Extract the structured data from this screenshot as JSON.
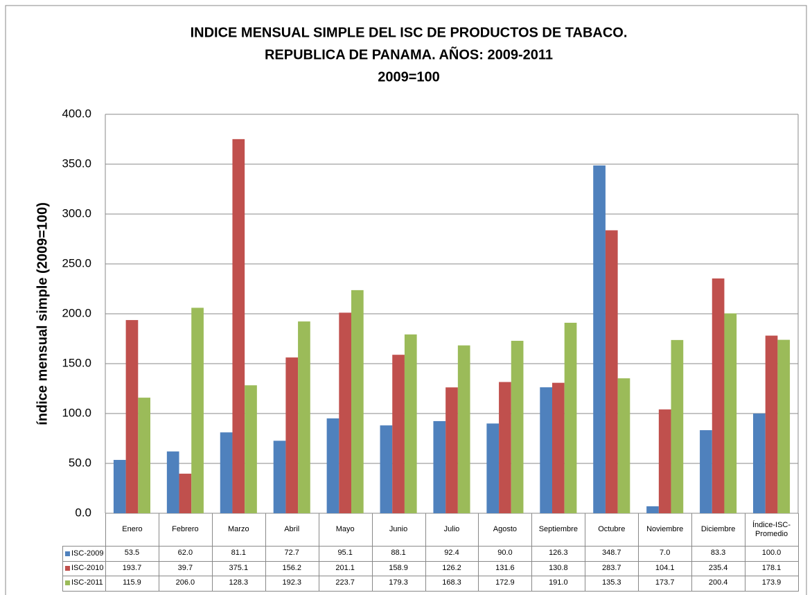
{
  "chart_data": {
    "type": "bar",
    "title": [
      "INDICE MENSUAL SIMPLE DEL ISC DE PRODUCTOS DE TABACO.",
      "REPUBLICA DE PANAMA. AÑOS: 2009-2011",
      "2009=100"
    ],
    "y_label": "índice mensual simple (2009=100)",
    "categories": [
      "Enero",
      "Febrero",
      "Marzo",
      "Abril",
      "Mayo",
      "Junio",
      "Julio",
      "Agosto",
      "Septiembre",
      "Octubre",
      "Noviembre",
      "Diciembre",
      "Índice-ISC-Promedio"
    ],
    "series": [
      {
        "name": "ISC-2009",
        "color": "#4f81bd",
        "values": [
          53.5,
          62.0,
          81.1,
          72.7,
          95.1,
          88.1,
          92.4,
          90.0,
          126.3,
          348.7,
          7.0,
          83.3,
          100.0
        ],
        "value_labels": [
          "53.5",
          "62.0",
          "81.1",
          "72.7",
          "95.1",
          "88.1",
          "92.4",
          "90.0",
          "126.3",
          "348.7",
          "7.0",
          "83.3",
          "100.0"
        ]
      },
      {
        "name": "ISC-2010",
        "color": "#c0504d",
        "values": [
          193.7,
          39.7,
          375.1,
          156.2,
          201.1,
          158.9,
          126.2,
          131.6,
          130.8,
          283.7,
          104.1,
          235.4,
          178.1
        ],
        "value_labels": [
          "193.7",
          "39.7",
          "375.1",
          "156.2",
          "201.1",
          "158.9",
          "126.2",
          "131.6",
          "130.8",
          "283.7",
          "104.1",
          "235.4",
          "178.1"
        ]
      },
      {
        "name": "ISC-2011",
        "color": "#9bbb59",
        "values": [
          115.9,
          206.0,
          128.3,
          192.3,
          223.7,
          179.3,
          168.3,
          172.9,
          191.0,
          135.3,
          173.7,
          200.4,
          173.9
        ],
        "value_labels": [
          "115.9",
          "206.0",
          "128.3",
          "192.3",
          "223.7",
          "179.3",
          "168.3",
          "172.9",
          "191.0",
          "135.3",
          "173.7",
          "200.4",
          "173.9"
        ]
      }
    ],
    "ylim": [
      0,
      400
    ],
    "yticks": [
      {
        "value": 0,
        "label": "0.0"
      },
      {
        "value": 50,
        "label": "50.0"
      },
      {
        "value": 100,
        "label": "100.0"
      },
      {
        "value": 150,
        "label": "150.0"
      },
      {
        "value": 200,
        "label": "200.0"
      },
      {
        "value": 250,
        "label": "250.0"
      },
      {
        "value": 300,
        "label": "300.0"
      },
      {
        "value": 350,
        "label": "350.0"
      },
      {
        "value": 400,
        "label": "400.0"
      }
    ],
    "grid": true
  }
}
